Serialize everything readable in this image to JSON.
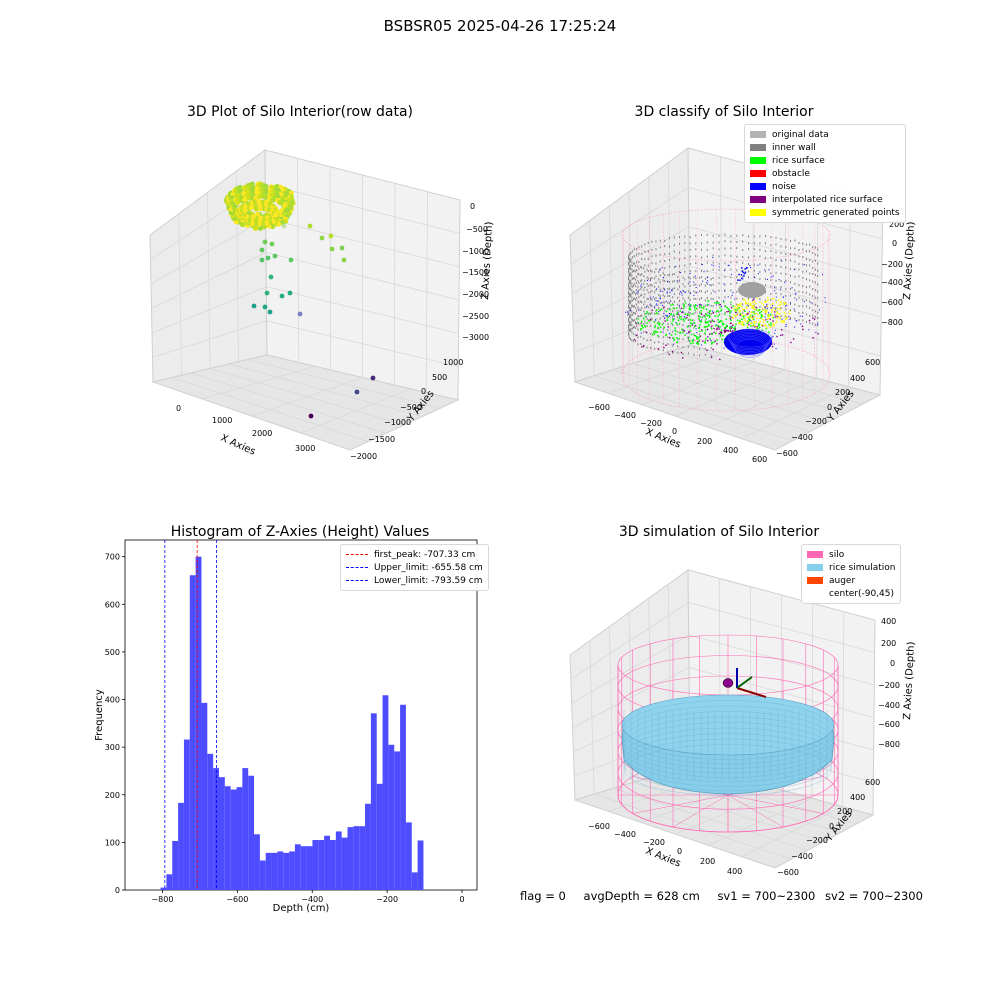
{
  "suptitle": "BSBSR05 2025-04-26 17:25:24",
  "chart_data": [
    {
      "type": "scatter3d",
      "title": "3D Plot of Silo Interior(row data)",
      "xlabel": "X Axies",
      "ylabel": "Y Axies",
      "zlabel": "Z Axies (Depth)",
      "xticks": [
        "0",
        "1000",
        "2000",
        "3000"
      ],
      "yticks": [
        "1000",
        "500",
        "0",
        "−500",
        "−1000",
        "−1500",
        "−2000"
      ],
      "zticks": [
        "0",
        "−500",
        "−1000",
        "−1500",
        "−2000",
        "−2500",
        "−3000"
      ],
      "colormap": "viridis"
    },
    {
      "type": "scatter3d",
      "title": "3D classify of Silo Interior",
      "xlabel": "X Axies",
      "ylabel": "Y Axies",
      "zlabel": "Z Axies (Depth)",
      "xticks": [
        "−600",
        "−400",
        "−200",
        "0",
        "200",
        "400",
        "600"
      ],
      "yticks": [
        "600",
        "400",
        "200",
        "0",
        "−200",
        "−400",
        "−600"
      ],
      "zticks": [
        "200",
        "0",
        "−200",
        "−400",
        "−600",
        "−800"
      ],
      "legend": [
        {
          "name": "original data",
          "color": "#b3b3b3"
        },
        {
          "name": "inner wall",
          "color": "#808080"
        },
        {
          "name": "rice surface",
          "color": "#00ff00"
        },
        {
          "name": "obstacle",
          "color": "#ff0000"
        },
        {
          "name": "noise",
          "color": "#0000ff"
        },
        {
          "name": "interpolated rice surface",
          "color": "#800080"
        },
        {
          "name": "symmetric generated points",
          "color": "#ffff00"
        }
      ]
    },
    {
      "type": "bar",
      "title": "Histogram of Z-Axies (Height) Values",
      "xlabel": "Depth (cm)",
      "ylabel": "Frequency",
      "xlim": [
        -900,
        40
      ],
      "ylim": [
        0,
        735
      ],
      "xticks": [
        -800,
        -600,
        -400,
        -200,
        0
      ],
      "xtick_labels": [
        "−800",
        "−600",
        "−400",
        "−200",
        "0"
      ],
      "yticks": [
        0,
        100,
        200,
        300,
        400,
        500,
        600,
        700
      ],
      "bar_color": "#4d4dff",
      "bin_start": -805,
      "bin_width": 15.6,
      "values": [
        5,
        33,
        103,
        183,
        316,
        661,
        700,
        393,
        286,
        256,
        237,
        218,
        211,
        216,
        256,
        240,
        117,
        62,
        78,
        78,
        81,
        78,
        81,
        96,
        92,
        92,
        105,
        105,
        114,
        105,
        123,
        110,
        132,
        134,
        134,
        181,
        371,
        223,
        409,
        305,
        291,
        389,
        142,
        37,
        104
      ],
      "vlines": [
        {
          "x": -707.33,
          "color": "#ff0000",
          "label": "first_peak: -707.33 cm"
        },
        {
          "x": -655.58,
          "color": "#0000ff",
          "label": "Upper_limit: -655.58 cm"
        },
        {
          "x": -793.59,
          "color": "#0000ff",
          "label": "Lower_limit: -793.59 cm"
        }
      ]
    },
    {
      "type": "surface3d",
      "title": "3D simulation of Silo Interior",
      "xlabel": "X Axies",
      "ylabel": "Y Axies",
      "zlabel": "Z Axies (Depth)",
      "xticks": [
        "−600",
        "−400",
        "−200",
        "0",
        "200",
        "400"
      ],
      "yticks": [
        "600",
        "400",
        "200",
        "0",
        "−200",
        "−400",
        "−600"
      ],
      "zticks": [
        "400",
        "200",
        "0",
        "−200",
        "−400",
        "−600",
        "−800"
      ],
      "legend": [
        {
          "name": "silo",
          "color": "#ff69b4"
        },
        {
          "name": "rice simulation",
          "color": "#87ceeb"
        },
        {
          "name": "auger",
          "color": "#ff4500"
        },
        {
          "name": "center(-90,45)",
          "color": ""
        }
      ]
    }
  ],
  "footer": {
    "flag": "flag = 0",
    "avg_depth": "avgDepth = 628 cm",
    "sv1": "sv1 = 700~2300",
    "sv2": "sv2 = 700~2300"
  }
}
